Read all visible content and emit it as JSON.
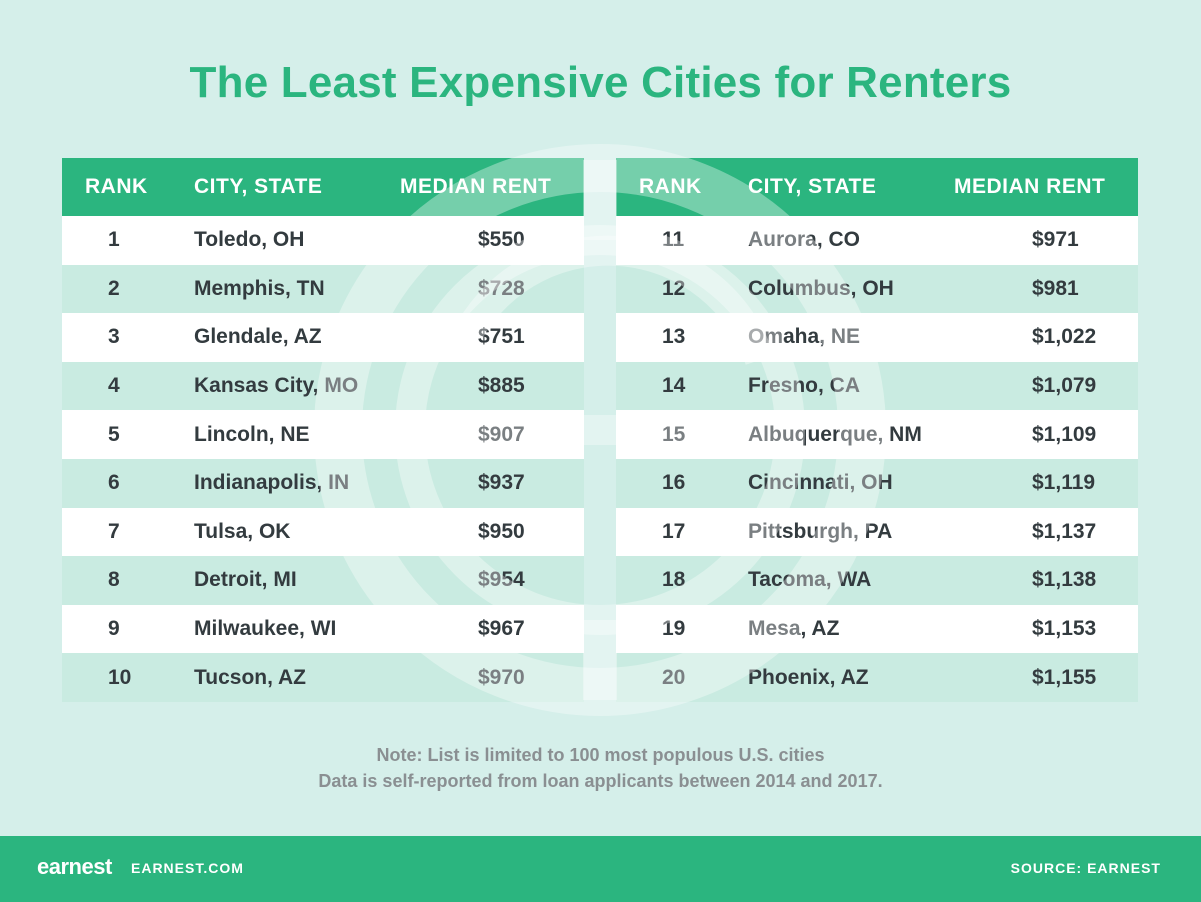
{
  "title": "The Least Expensive Cities for Renters",
  "colors": {
    "accent": "#2bb57f",
    "background": "#d5efea",
    "row_alt": "#c9ebe1",
    "text": "#333b3f"
  },
  "chart_data": {
    "type": "table",
    "title": "The Least Expensive Cities for Renters",
    "columns": [
      "RANK",
      "CITY, STATE",
      "MEDIAN RENT"
    ],
    "rows": [
      {
        "rank": "1",
        "city": "Toledo, OH",
        "rent": "$550"
      },
      {
        "rank": "2",
        "city": "Memphis, TN",
        "rent": "$728"
      },
      {
        "rank": "3",
        "city": "Glendale, AZ",
        "rent": "$751"
      },
      {
        "rank": "4",
        "city": "Kansas City, MO",
        "rent": "$885"
      },
      {
        "rank": "5",
        "city": "Lincoln, NE",
        "rent": "$907"
      },
      {
        "rank": "6",
        "city": "Indianapolis, IN",
        "rent": "$937"
      },
      {
        "rank": "7",
        "city": "Tulsa, OK",
        "rent": "$950"
      },
      {
        "rank": "8",
        "city": "Detroit, MI",
        "rent": "$954"
      },
      {
        "rank": "9",
        "city": "Milwaukee, WI",
        "rent": "$967"
      },
      {
        "rank": "10",
        "city": "Tucson, AZ",
        "rent": "$970"
      },
      {
        "rank": "11",
        "city": "Aurora, CO",
        "rent": "$971"
      },
      {
        "rank": "12",
        "city": "Columbus, OH",
        "rent": "$981"
      },
      {
        "rank": "13",
        "city": "Omaha, NE",
        "rent": "$1,022"
      },
      {
        "rank": "14",
        "city": "Fresno, CA",
        "rent": "$1,079"
      },
      {
        "rank": "15",
        "city": "Albuquerque, NM",
        "rent": "$1,109"
      },
      {
        "rank": "16",
        "city": "Cincinnati, OH",
        "rent": "$1,119"
      },
      {
        "rank": "17",
        "city": "Pittsburgh, PA",
        "rent": "$1,137"
      },
      {
        "rank": "18",
        "city": "Tacoma, WA",
        "rent": "$1,138"
      },
      {
        "rank": "19",
        "city": "Mesa, AZ",
        "rent": "$1,153"
      },
      {
        "rank": "20",
        "city": "Phoenix, AZ",
        "rent": "$1,155"
      }
    ]
  },
  "note": {
    "line1": "Note: List is limited to 100 most populous U.S. cities",
    "line2": "Data is self-reported from loan applicants between 2014 and 2017."
  },
  "footer": {
    "logo": "earnest",
    "site": "EARNEST.COM",
    "source": "SOURCE: EARNEST"
  }
}
